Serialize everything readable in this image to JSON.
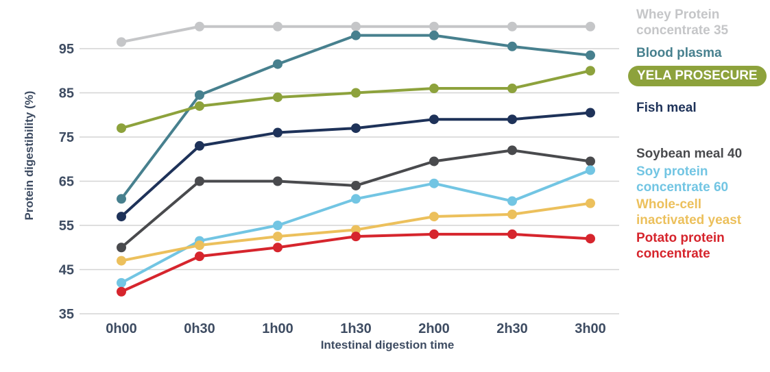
{
  "chart_data": {
    "type": "line",
    "xlabel": "Intestinal digestion time",
    "ylabel": "Protein digestibility (%)",
    "categories": [
      "0h00",
      "0h30",
      "1h00",
      "1h30",
      "2h00",
      "2h30",
      "3h00"
    ],
    "yticks": [
      95,
      85,
      75,
      65,
      55,
      45,
      35
    ],
    "ylim": [
      35,
      102
    ],
    "grid": "horizontal-only",
    "legend_position": "right",
    "series": [
      {
        "id": "whey",
        "name": "Whey Protein concentrate 35",
        "color": "#c5c6c8",
        "values": [
          96.5,
          100,
          100,
          100,
          100,
          100,
          100
        ]
      },
      {
        "id": "blood-plasma",
        "name": "Blood plasma",
        "color": "#47808e",
        "values": [
          61,
          84.5,
          91.5,
          98,
          98,
          95.5,
          93.5
        ]
      },
      {
        "id": "yela-prosecure",
        "name": "YELA PROSECURE",
        "color": "#8da23c",
        "values": [
          77,
          82,
          84,
          85,
          86,
          86,
          90
        ]
      },
      {
        "id": "fish-meal",
        "name": "Fish meal",
        "color": "#1e3259",
        "values": [
          57,
          73,
          76,
          77,
          79,
          79,
          80.5
        ]
      },
      {
        "id": "soybean-meal",
        "name": "Soybean meal 40",
        "color": "#494a4d",
        "values": [
          50,
          65,
          65,
          64,
          69.5,
          72,
          69.5
        ]
      },
      {
        "id": "soy-protein",
        "name": "Soy protein concentrate 60",
        "color": "#72c5e3",
        "values": [
          42,
          51.5,
          55,
          61,
          64.5,
          60.5,
          67.5
        ]
      },
      {
        "id": "yeast",
        "name": "Whole-cell inactivated yeast",
        "color": "#ecc05c",
        "values": [
          47,
          50.5,
          52.5,
          54,
          57,
          57.5,
          60
        ]
      },
      {
        "id": "potato",
        "name": "Potato protein concentrate",
        "color": "#d6252d",
        "values": [
          40,
          48,
          50,
          52.5,
          53,
          53,
          52
        ]
      }
    ]
  },
  "legend": [
    {
      "id": "whey",
      "lines": [
        "Whey Protein",
        "concentrate 35"
      ],
      "color": "#c5c6c8",
      "badge": false
    },
    {
      "id": "blood-plasma",
      "lines": [
        "Blood plasma"
      ],
      "color": "#47808e",
      "badge": false
    },
    {
      "id": "yela-prosecure",
      "lines": [
        "YELA PROSECURE"
      ],
      "color": "#8da23c",
      "badge": true
    },
    {
      "id": "fish-meal",
      "lines": [
        "Fish meal"
      ],
      "color": "#1e3259",
      "badge": false
    },
    {
      "id": "soybean-meal",
      "lines": [
        "Soybean meal 40"
      ],
      "color": "#494a4d",
      "badge": false
    },
    {
      "id": "soy-protein",
      "lines": [
        "Soy protein",
        "concentrate 60"
      ],
      "color": "#72c5e3",
      "badge": false
    },
    {
      "id": "yeast",
      "lines": [
        "Whole-cell",
        "inactivated yeast"
      ],
      "color": "#ecc05c",
      "badge": false
    },
    {
      "id": "potato",
      "lines": [
        "Potato protein",
        "concentrate"
      ],
      "color": "#d6252d",
      "badge": false
    }
  ],
  "style": {
    "grid_color": "#d3d3d3",
    "axis_text_color": "#3e4c62",
    "badge_text_color": "#ffffff",
    "background": "#ffffff"
  }
}
